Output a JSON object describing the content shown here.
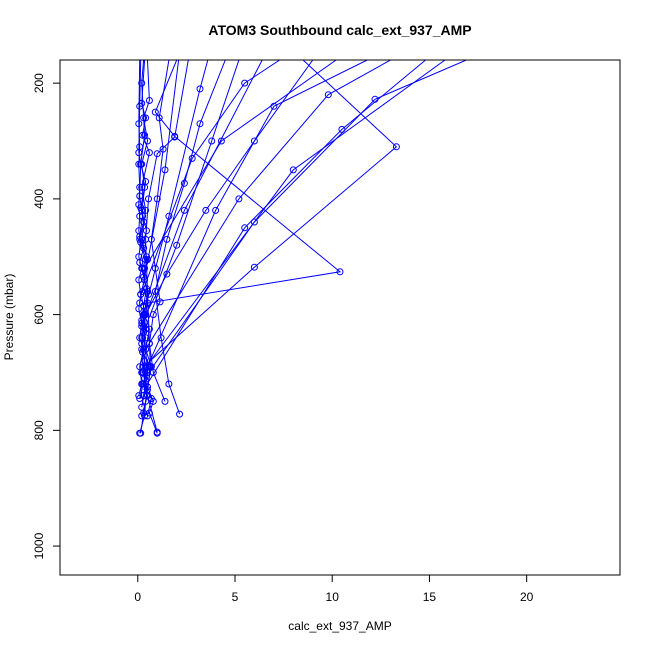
{
  "chart_data": {
    "type": "scatter",
    "title": "ATOM3 Southbound calc_ext_937_AMP",
    "xlabel": "calc_ext_937_AMP",
    "ylabel": "Pressure (mbar)",
    "xlim": [
      -4,
      24.8
    ],
    "ylim": [
      1050,
      160
    ],
    "y_reversed": true,
    "x_ticks": [
      0,
      5,
      10,
      15,
      20
    ],
    "x_tick_labels": [
      "0",
      "5",
      "10",
      "15",
      "20"
    ],
    "y_ticks": [
      200,
      400,
      600,
      800,
      1000
    ],
    "y_tick_labels": [
      "200",
      "400",
      "600",
      "800",
      "1000"
    ],
    "grid": false,
    "legend": "none",
    "color": "#0000ff",
    "series": [
      {
        "points": [
          {
            "x": 0.5,
            "y": 775
          },
          {
            "x": 0.7,
            "y": 745
          },
          {
            "x": 0.25,
            "y": 720
          },
          {
            "x": 0.6,
            "y": 690
          },
          {
            "x": 0.2,
            "y": 660
          },
          {
            "x": 0.4,
            "y": 625
          },
          {
            "x": 0.3,
            "y": 585
          },
          {
            "x": 0.45,
            "y": 555
          },
          {
            "x": 0.25,
            "y": 520
          },
          {
            "x": 0.4,
            "y": 505
          },
          {
            "x": 0.1,
            "y": 470
          },
          {
            "x": 0.3,
            "y": 440
          },
          {
            "x": 0.15,
            "y": 415
          },
          {
            "x": 0.35,
            "y": 380
          },
          {
            "x": 0.2,
            "y": 340
          },
          {
            "x": 0.5,
            "y": 300
          },
          {
            "x": 0.3,
            "y": 260
          },
          {
            "x": 0.6,
            "y": 230
          },
          {
            "x": 0.5,
            "y": 160
          }
        ]
      },
      {
        "points": [
          {
            "x": 0.15,
            "y": 805
          },
          {
            "x": 0.3,
            "y": 770
          },
          {
            "x": 0.5,
            "y": 730
          },
          {
            "x": 0.25,
            "y": 700
          },
          {
            "x": 0.35,
            "y": 680
          },
          {
            "x": 0.2,
            "y": 640
          },
          {
            "x": 0.3,
            "y": 600
          },
          {
            "x": 0.55,
            "y": 565
          },
          {
            "x": 0.35,
            "y": 540
          },
          {
            "x": 0.45,
            "y": 500
          },
          {
            "x": 0.2,
            "y": 470
          },
          {
            "x": 0.4,
            "y": 420
          },
          {
            "x": 0.2,
            "y": 380
          },
          {
            "x": 0.6,
            "y": 320
          },
          {
            "x": 0.25,
            "y": 290
          },
          {
            "x": 0.4,
            "y": 260
          },
          {
            "x": 0.2,
            "y": 235
          },
          {
            "x": 0.35,
            "y": 160
          }
        ]
      },
      {
        "points": [
          {
            "x": 1.0,
            "y": 805
          },
          {
            "x": 0.6,
            "y": 770
          },
          {
            "x": 0.8,
            "y": 750
          },
          {
            "x": 0.5,
            "y": 725
          },
          {
            "x": 0.7,
            "y": 690
          },
          {
            "x": 0.4,
            "y": 660
          },
          {
            "x": 0.6,
            "y": 625
          },
          {
            "x": 0.35,
            "y": 600
          },
          {
            "x": 0.5,
            "y": 560
          },
          {
            "x": 0.3,
            "y": 535
          },
          {
            "x": 0.5,
            "y": 505
          },
          {
            "x": 0.25,
            "y": 480
          },
          {
            "x": 0.45,
            "y": 455
          },
          {
            "x": 0.2,
            "y": 420
          },
          {
            "x": 0.4,
            "y": 370
          },
          {
            "x": 0.15,
            "y": 340
          },
          {
            "x": 0.35,
            "y": 290
          },
          {
            "x": 0.2,
            "y": 200
          },
          {
            "x": 0.3,
            "y": 160
          }
        ]
      },
      {
        "points": [
          {
            "x": 0.2,
            "y": 775
          },
          {
            "x": 0.5,
            "y": 740
          },
          {
            "x": 0.3,
            "y": 720
          },
          {
            "x": 0.5,
            "y": 700
          },
          {
            "x": 0.25,
            "y": 665
          },
          {
            "x": 0.4,
            "y": 640
          },
          {
            "x": 0.2,
            "y": 610
          },
          {
            "x": 0.3,
            "y": 585
          },
          {
            "x": 0.15,
            "y": 565
          },
          {
            "x": 0.35,
            "y": 540
          },
          {
            "x": 0.1,
            "y": 510
          },
          {
            "x": 0.3,
            "y": 485
          },
          {
            "x": 0.1,
            "y": 465
          },
          {
            "x": 0.25,
            "y": 430
          },
          {
            "x": 0.1,
            "y": 395
          },
          {
            "x": 0.15,
            "y": 340
          },
          {
            "x": 0.05,
            "y": 320
          },
          {
            "x": 0.1,
            "y": 240
          },
          {
            "x": 0.15,
            "y": 160
          }
        ]
      },
      {
        "points": [
          {
            "x": 0.05,
            "y": 740
          },
          {
            "x": 0.2,
            "y": 720
          },
          {
            "x": 0.1,
            "y": 690
          },
          {
            "x": 0.3,
            "y": 660
          },
          {
            "x": 0.1,
            "y": 640
          },
          {
            "x": 0.2,
            "y": 615
          },
          {
            "x": 0.05,
            "y": 590
          },
          {
            "x": 0.15,
            "y": 565
          },
          {
            "x": 0.05,
            "y": 540
          },
          {
            "x": 0.2,
            "y": 520
          },
          {
            "x": 0.05,
            "y": 500
          },
          {
            "x": 0.15,
            "y": 475
          },
          {
            "x": 0.05,
            "y": 455
          },
          {
            "x": 0.1,
            "y": 430
          },
          {
            "x": 0.05,
            "y": 410
          },
          {
            "x": 0.1,
            "y": 380
          },
          {
            "x": 0.05,
            "y": 340
          },
          {
            "x": 0.1,
            "y": 310
          },
          {
            "x": 0.05,
            "y": 270
          },
          {
            "x": 0.1,
            "y": 160
          }
        ]
      },
      {
        "points": [
          {
            "x": 0.1,
            "y": 805
          },
          {
            "x": 0.35,
            "y": 775
          },
          {
            "x": 0.4,
            "y": 750
          },
          {
            "x": 0.65,
            "y": 690
          },
          {
            "x": 0.6,
            "y": 650
          },
          {
            "x": 0.8,
            "y": 600
          },
          {
            "x": 1.15,
            "y": 578
          },
          {
            "x": 0.9,
            "y": 520
          },
          {
            "x": 0.7,
            "y": 470
          },
          {
            "x": 1.0,
            "y": 400
          },
          {
            "x": 1.3,
            "y": 314
          },
          {
            "x": 1.1,
            "y": 260
          },
          {
            "x": 1.6,
            "y": 160
          }
        ]
      },
      {
        "points": [
          {
            "x": 1.4,
            "y": 750
          },
          {
            "x": 0.8,
            "y": 700
          },
          {
            "x": 0.6,
            "y": 650
          },
          {
            "x": 0.5,
            "y": 560
          },
          {
            "x": 0.4,
            "y": 470
          },
          {
            "x": 0.55,
            "y": 400
          },
          {
            "x": 1.0,
            "y": 322
          },
          {
            "x": 1.9,
            "y": 293
          },
          {
            "x": 2.6,
            "y": 160
          }
        ]
      },
      {
        "points": [
          {
            "x": 2.15,
            "y": 772
          },
          {
            "x": 1.6,
            "y": 720
          },
          {
            "x": 1.2,
            "y": 640
          },
          {
            "x": 0.9,
            "y": 560
          },
          {
            "x": 1.5,
            "y": 470
          },
          {
            "x": 2.4,
            "y": 373
          },
          {
            "x": 3.2,
            "y": 270
          },
          {
            "x": 4.5,
            "y": 160
          }
        ]
      },
      {
        "points": [
          {
            "x": 1.0,
            "y": 803
          },
          {
            "x": 0.5,
            "y": 740
          },
          {
            "x": 0.3,
            "y": 700
          },
          {
            "x": 0.2,
            "y": 650
          },
          {
            "x": 0.4,
            "y": 600
          },
          {
            "x": 1.5,
            "y": 530
          },
          {
            "x": 3.5,
            "y": 420
          },
          {
            "x": 6.0,
            "y": 300
          },
          {
            "x": 9.0,
            "y": 160
          }
        ]
      },
      {
        "points": [
          {
            "x": 0.3,
            "y": 740
          },
          {
            "x": 0.5,
            "y": 700
          },
          {
            "x": 0.4,
            "y": 660
          },
          {
            "x": 0.3,
            "y": 620
          },
          {
            "x": 0.5,
            "y": 580
          },
          {
            "x": 10.4,
            "y": 526
          },
          {
            "x": 1.9,
            "y": 292
          },
          {
            "x": 0.9,
            "y": 250
          },
          {
            "x": 2.0,
            "y": 160
          }
        ]
      },
      {
        "points": [
          {
            "x": 0.2,
            "y": 760
          },
          {
            "x": 0.4,
            "y": 720
          },
          {
            "x": 0.3,
            "y": 690
          },
          {
            "x": 6.0,
            "y": 518
          },
          {
            "x": 13.3,
            "y": 310
          },
          {
            "x": 8.5,
            "y": 160
          }
        ]
      },
      {
        "points": [
          {
            "x": 0.3,
            "y": 730
          },
          {
            "x": 5.5,
            "y": 450
          },
          {
            "x": 10.5,
            "y": 280
          },
          {
            "x": 14.8,
            "y": 160
          }
        ]
      },
      {
        "points": [
          {
            "x": 0.1,
            "y": 745
          },
          {
            "x": 0.35,
            "y": 710
          },
          {
            "x": 6.0,
            "y": 440
          },
          {
            "x": 12.2,
            "y": 228
          },
          {
            "x": 16.9,
            "y": 160
          }
        ]
      },
      {
        "points": [
          {
            "x": 0.2,
            "y": 700
          },
          {
            "x": 8.0,
            "y": 350
          },
          {
            "x": 15.8,
            "y": 160
          }
        ]
      },
      {
        "points": [
          {
            "x": 0.5,
            "y": 690
          },
          {
            "x": 4.0,
            "y": 420
          },
          {
            "x": 7.0,
            "y": 240
          },
          {
            "x": 11.8,
            "y": 160
          }
        ]
      },
      {
        "points": [
          {
            "x": 0.3,
            "y": 630
          },
          {
            "x": 2.0,
            "y": 480
          },
          {
            "x": 3.8,
            "y": 300
          },
          {
            "x": 5.2,
            "y": 160
          }
        ]
      },
      {
        "points": [
          {
            "x": 0.4,
            "y": 660
          },
          {
            "x": 5.2,
            "y": 400
          },
          {
            "x": 9.8,
            "y": 220
          },
          {
            "x": 13.0,
            "y": 160
          }
        ]
      },
      {
        "points": [
          {
            "x": 0.3,
            "y": 600
          },
          {
            "x": 1.6,
            "y": 430
          },
          {
            "x": 3.2,
            "y": 210
          },
          {
            "x": 3.6,
            "y": 160
          }
        ]
      },
      {
        "points": [
          {
            "x": 0.25,
            "y": 560
          },
          {
            "x": 2.8,
            "y": 330
          },
          {
            "x": 5.5,
            "y": 200
          },
          {
            "x": 7.3,
            "y": 160
          }
        ]
      },
      {
        "points": [
          {
            "x": 0.1,
            "y": 580
          },
          {
            "x": 1.4,
            "y": 350
          },
          {
            "x": 2.1,
            "y": 160
          }
        ]
      },
      {
        "points": [
          {
            "x": 0.35,
            "y": 520
          },
          {
            "x": 4.3,
            "y": 300
          },
          {
            "x": 10.2,
            "y": 160
          }
        ]
      },
      {
        "points": [
          {
            "x": 0.2,
            "y": 620
          },
          {
            "x": 2.4,
            "y": 420
          },
          {
            "x": 6.4,
            "y": 160
          }
        ]
      }
    ]
  }
}
